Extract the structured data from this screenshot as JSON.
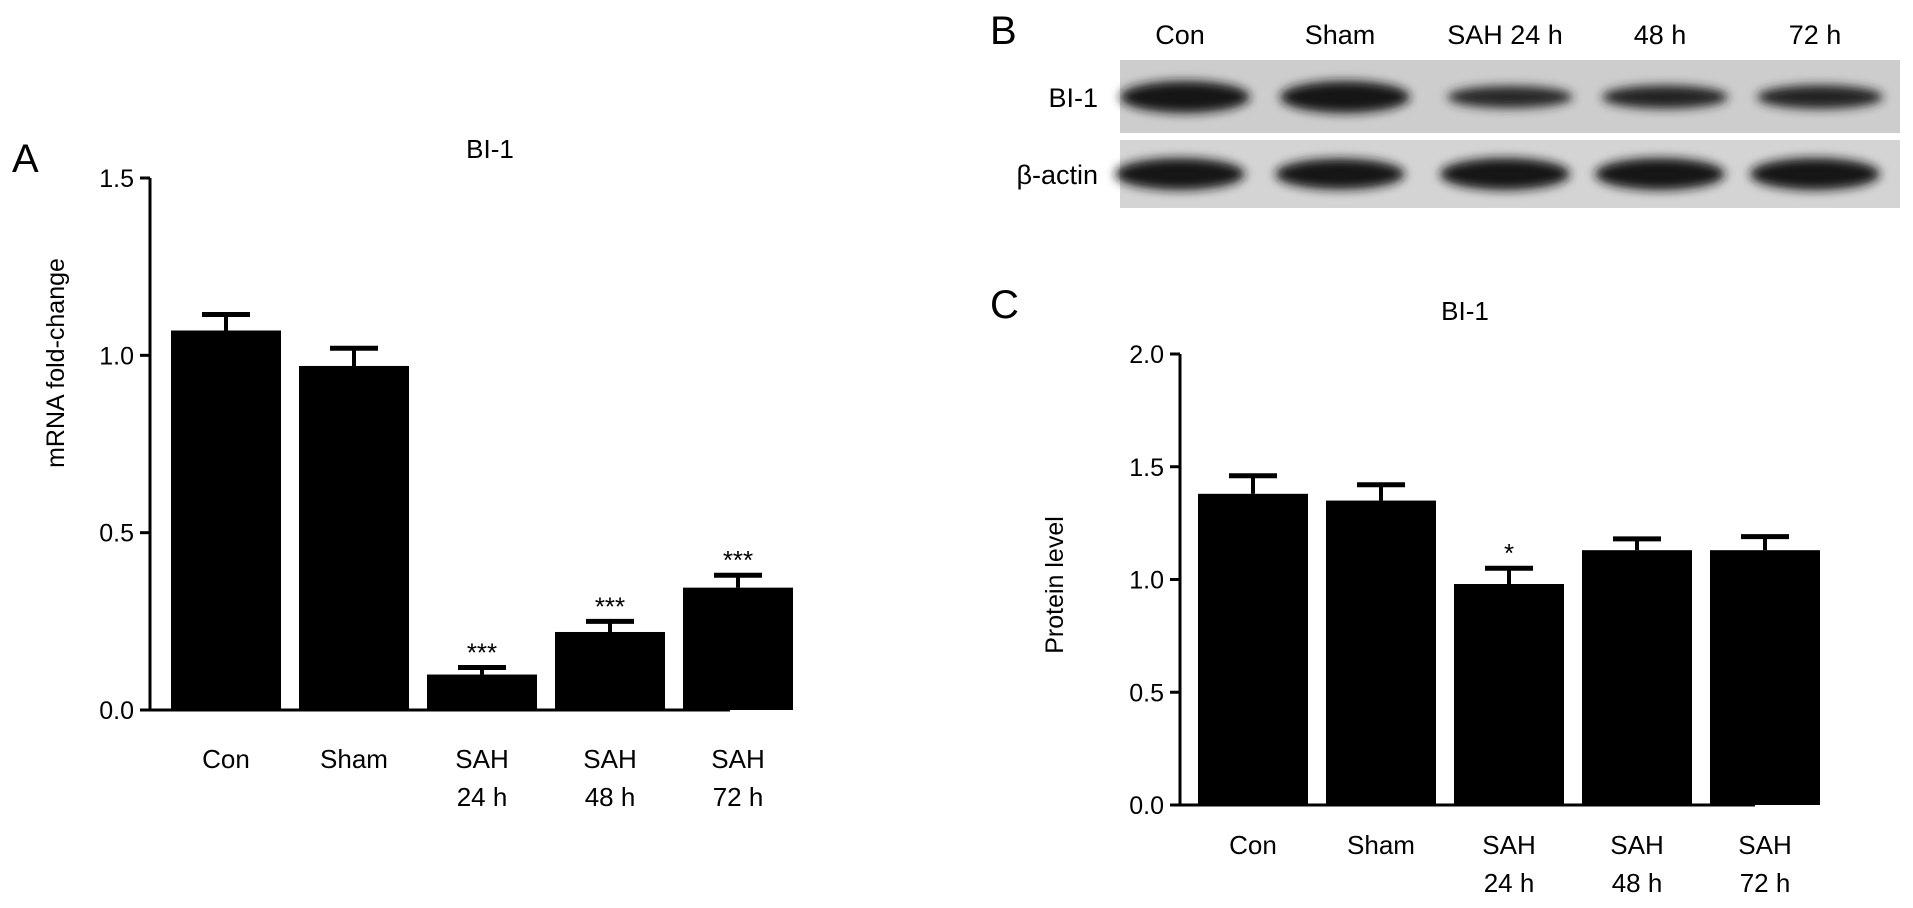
{
  "chart_data": [
    {
      "panel_label": "A",
      "type": "bar",
      "title": "BI-1",
      "ylabel": "mRNA fold-change",
      "xlabel": "",
      "ylim": [
        0,
        1.5
      ],
      "yticks": [
        "0.0",
        "0.5",
        "1.0",
        "1.5"
      ],
      "categories": [
        [
          "Con"
        ],
        [
          "Sham"
        ],
        [
          "SAH",
          "24 h"
        ],
        [
          "SAH",
          "48 h"
        ],
        [
          "SAH",
          "72 h"
        ]
      ],
      "values": [
        1.07,
        0.97,
        0.1,
        0.22,
        0.345
      ],
      "error": [
        0.045,
        0.05,
        0.02,
        0.03,
        0.035
      ],
      "significance": [
        "",
        "",
        "***",
        "***",
        "***"
      ],
      "bar_color": "#000000",
      "grid": false
    },
    {
      "panel_label": "C",
      "type": "bar",
      "title": "BI-1",
      "ylabel": "Protein level",
      "xlabel": "",
      "ylim": [
        0,
        2.0
      ],
      "yticks": [
        "0.0",
        "0.5",
        "1.0",
        "1.5",
        "2.0"
      ],
      "categories": [
        [
          "Con"
        ],
        [
          "Sham"
        ],
        [
          "SAH",
          "24 h"
        ],
        [
          "SAH",
          "48 h"
        ],
        [
          "SAH",
          "72 h"
        ]
      ],
      "values": [
        1.38,
        1.35,
        0.98,
        1.13,
        1.13
      ],
      "error": [
        0.08,
        0.07,
        0.07,
        0.05,
        0.06
      ],
      "significance": [
        "",
        "",
        "*",
        "",
        ""
      ],
      "bar_color": "#000000",
      "grid": false
    }
  ],
  "blot": {
    "panel_label": "B",
    "lanes": [
      "Con",
      "Sham",
      "SAH 24 h",
      "48 h",
      "72 h"
    ],
    "rows": [
      {
        "label": "BI-1",
        "intensity": [
          1.0,
          1.0,
          0.55,
          0.6,
          0.62
        ]
      },
      {
        "label": "β-actin",
        "intensity": [
          1.0,
          0.95,
          1.0,
          1.0,
          1.0
        ]
      }
    ]
  }
}
